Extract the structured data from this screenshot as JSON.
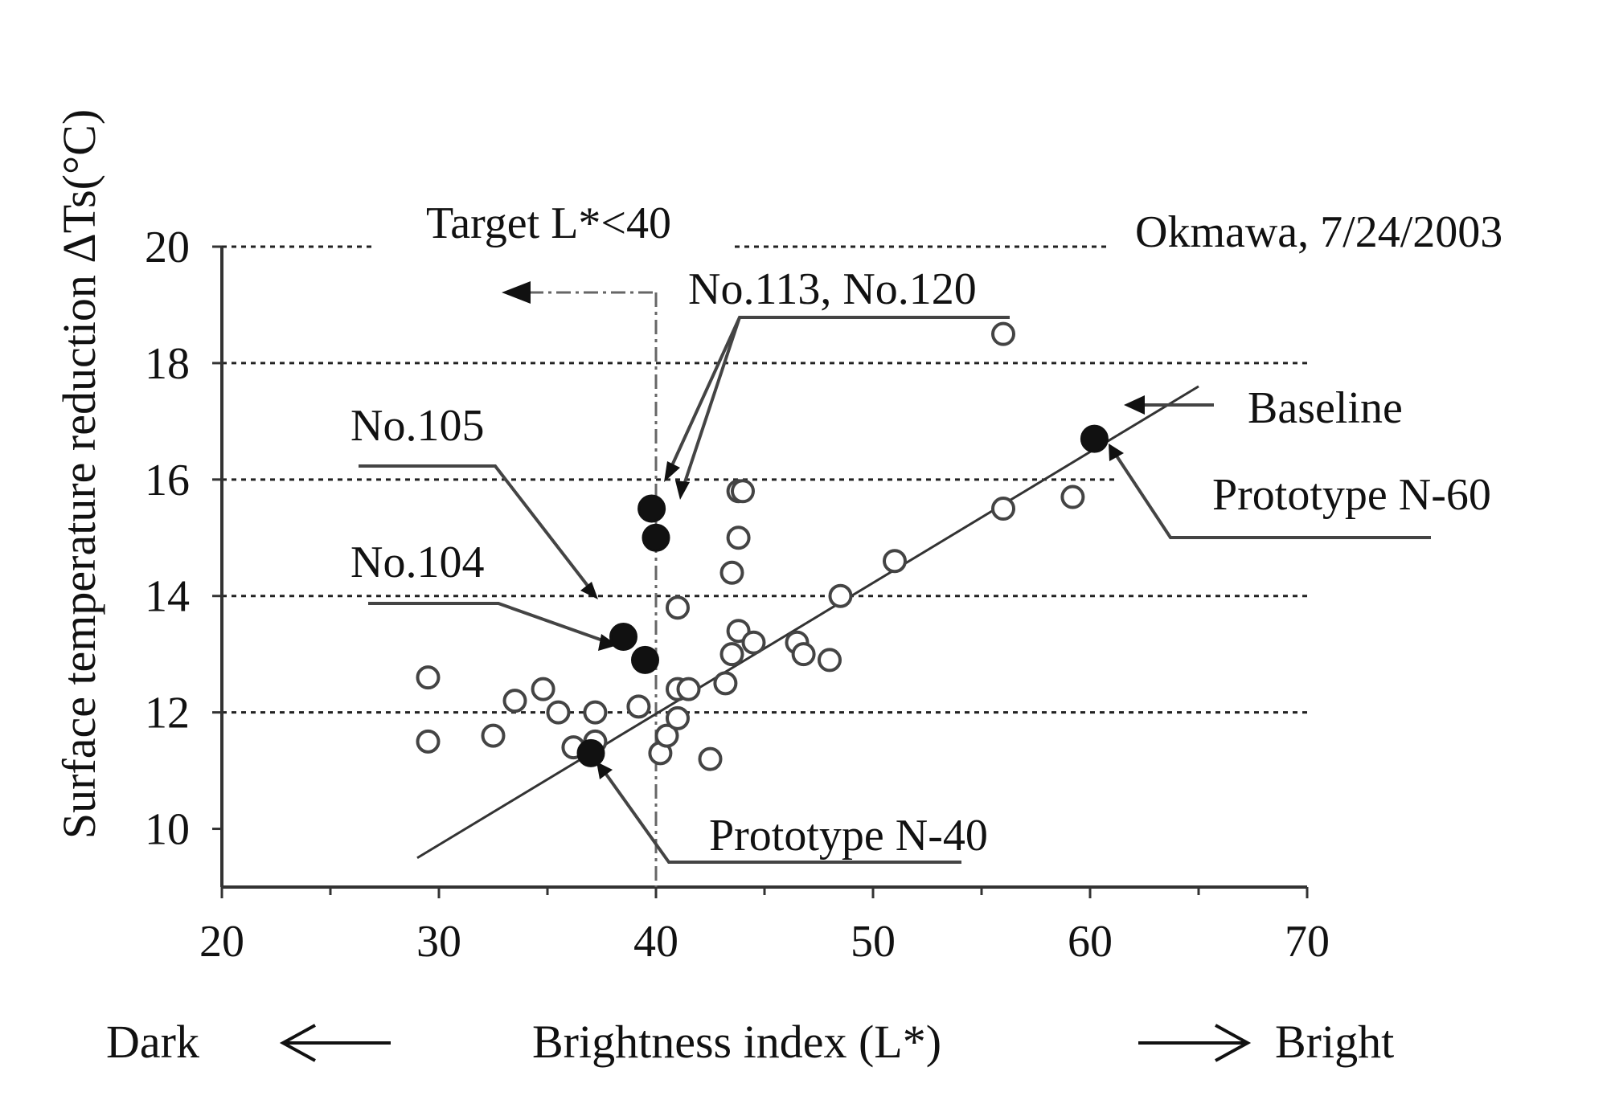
{
  "chart_data": {
    "type": "scatter",
    "title": "",
    "xlabel": "Brightness index (L*)",
    "ylabel": "Surface temperature reduction ΔTs(°C)",
    "xlim": [
      20,
      70
    ],
    "ylim": [
      9,
      20
    ],
    "xticks": [
      20,
      30,
      40,
      50,
      60,
      70
    ],
    "yticks": [
      10,
      12,
      14,
      16,
      18,
      20
    ],
    "grid": "horizontal dashed partial",
    "dark_label": "Dark",
    "bright_label": "Bright",
    "source_label": "Okmawa, 7/24/2003",
    "target_label": "Target L*<40",
    "target_line_x": 40,
    "annotations": {
      "no113_120": "No.113, No.120",
      "no105": "No.105",
      "no104": "No.104",
      "baseline": "Baseline",
      "prototype_n60": "Prototype N-60",
      "prototype_n40": "Prototype N-40"
    },
    "trendline": {
      "x": [
        29,
        65
      ],
      "y": [
        9.5,
        17.6
      ]
    },
    "series": [
      {
        "marker": "open",
        "points": [
          [
            29.5,
            12.6
          ],
          [
            29.5,
            11.5
          ],
          [
            32.5,
            11.6
          ],
          [
            33.5,
            12.2
          ],
          [
            34.8,
            12.4
          ],
          [
            35.5,
            12.0
          ],
          [
            36.2,
            11.4
          ],
          [
            37.2,
            11.5
          ],
          [
            37.2,
            12.0
          ],
          [
            39.2,
            12.1
          ],
          [
            40.2,
            11.3
          ],
          [
            40.5,
            11.6
          ],
          [
            41,
            11.9
          ],
          [
            41,
            12.4
          ],
          [
            41.5,
            12.4
          ],
          [
            42.5,
            11.2
          ],
          [
            43.2,
            12.5
          ],
          [
            43.5,
            13.0
          ],
          [
            43.8,
            13.4
          ],
          [
            44.5,
            13.2
          ],
          [
            41,
            13.8
          ],
          [
            43.5,
            14.4
          ],
          [
            43.8,
            15.0
          ],
          [
            43.8,
            15.8
          ],
          [
            44,
            15.8
          ],
          [
            46.5,
            13.2
          ],
          [
            46.8,
            13.0
          ],
          [
            48,
            12.9
          ],
          [
            48.5,
            14.0
          ],
          [
            51,
            14.6
          ],
          [
            56,
            15.5
          ],
          [
            59.2,
            15.7
          ],
          [
            56,
            18.5
          ]
        ]
      },
      {
        "marker": "filled",
        "points": [
          [
            39.8,
            15.5
          ],
          [
            40,
            15.0
          ],
          [
            38.5,
            13.3
          ],
          [
            39.5,
            12.9
          ],
          [
            37,
            11.3
          ],
          [
            60.2,
            16.7
          ]
        ]
      }
    ]
  }
}
